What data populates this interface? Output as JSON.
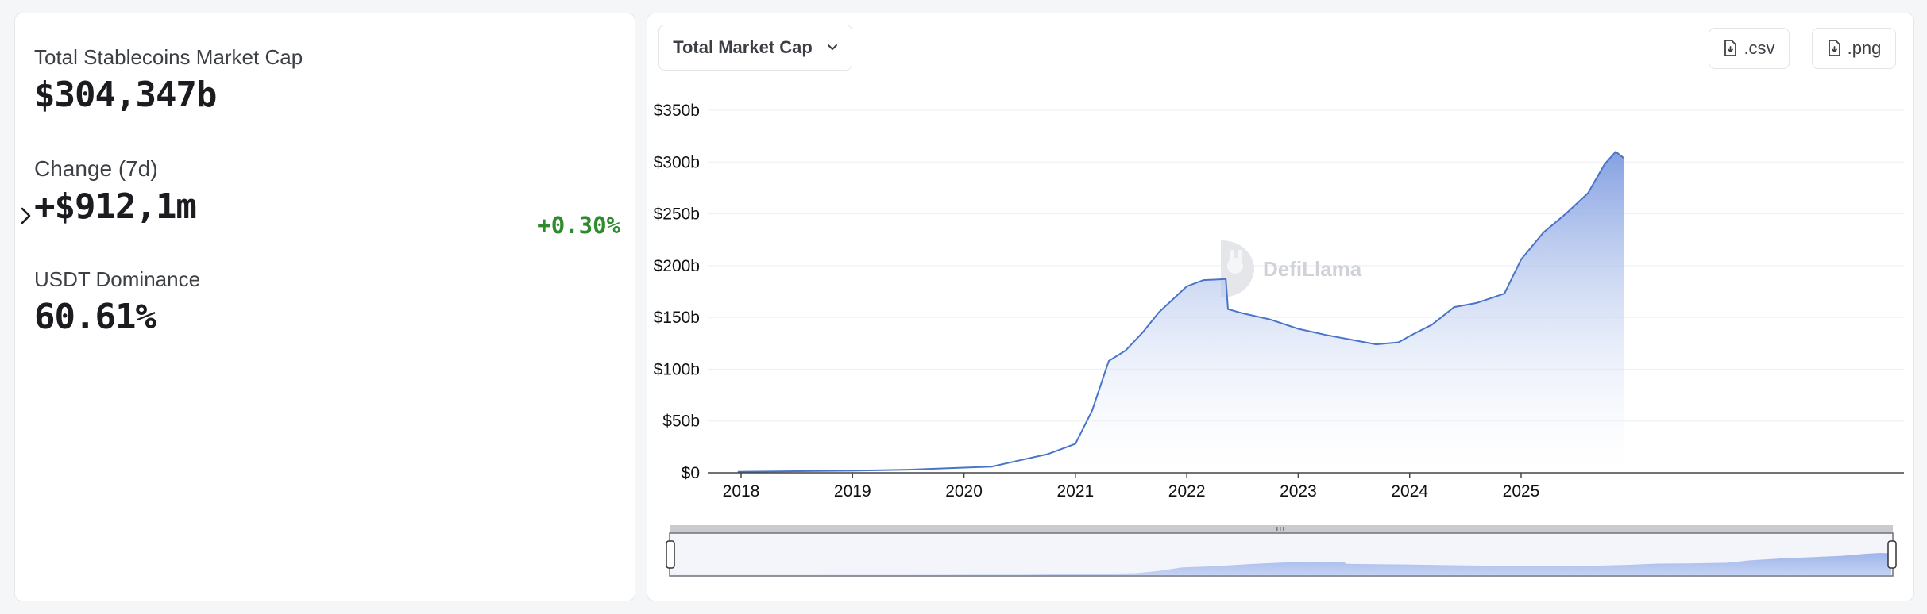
{
  "stats": {
    "total_label": "Total Stablecoins Market Cap",
    "total_value": "$304,347b",
    "change_label": "Change (7d)",
    "change_value": "+$912,1m",
    "change_pct": "+0.30%",
    "dominance_label": "USDT Dominance",
    "dominance_value": "60.61%"
  },
  "toolbar": {
    "metric_label": "Total Market Cap",
    "csv_label": ".csv",
    "png_label": ".png"
  },
  "watermark": "DefiLlama",
  "colors": {
    "line": "#4a74c9",
    "area_top": "#7d9be0",
    "positive": "#2e8b2e"
  },
  "chart_data": {
    "type": "area",
    "title": "",
    "xlabel": "",
    "ylabel": "",
    "ylim": [
      0,
      350
    ],
    "y_ticks": [
      "$0",
      "$50b",
      "$100b",
      "$150b",
      "$200b",
      "$250b",
      "$300b",
      "$350b"
    ],
    "x_ticks": [
      "2018",
      "2019",
      "2020",
      "2021",
      "2022",
      "2023",
      "2024",
      "2025"
    ],
    "grid": true,
    "series": [
      {
        "values_unit": "billions USD",
        "x": [
          2017.97,
          2018.5,
          2019.0,
          2019.5,
          2020.0,
          2020.25,
          2020.5,
          2020.75,
          2021.0,
          2021.15,
          2021.3,
          2021.45,
          2021.6,
          2021.75,
          2021.9,
          2022.0,
          2022.15,
          2022.35,
          2022.37,
          2022.5,
          2022.75,
          2023.0,
          2023.25,
          2023.5,
          2023.7,
          2023.9,
          2024.0,
          2024.2,
          2024.4,
          2024.6,
          2024.85,
          2025.0,
          2025.2,
          2025.4,
          2025.6,
          2025.75,
          2025.85,
          2025.92
        ],
        "y": [
          1,
          1.5,
          2,
          3,
          5,
          6,
          12,
          18,
          28,
          60,
          108,
          118,
          135,
          155,
          170,
          180,
          186,
          187,
          158,
          154,
          148,
          139,
          133,
          128,
          124,
          126,
          132,
          143,
          160,
          164,
          173,
          206,
          232,
          250,
          270,
          298,
          310,
          304
        ]
      }
    ]
  }
}
